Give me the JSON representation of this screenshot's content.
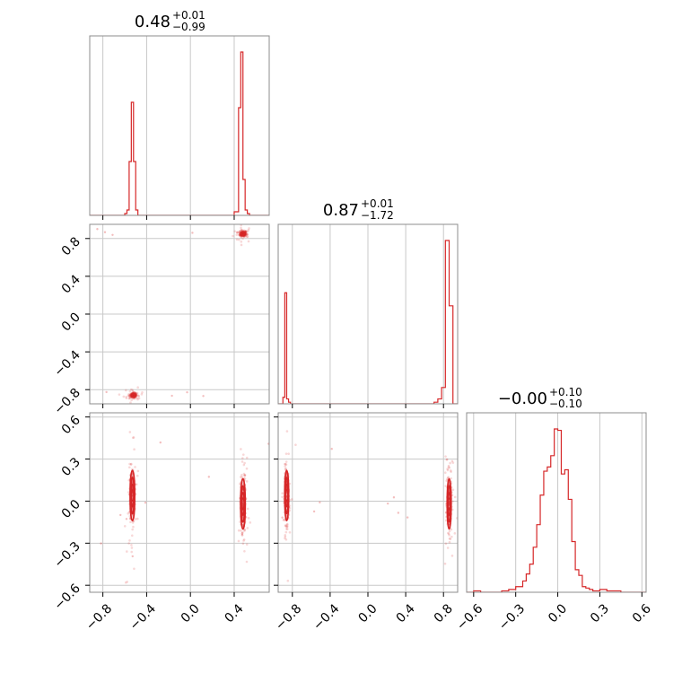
{
  "chart_data": {
    "type": "scatter",
    "subtype": "corner-plot",
    "color": "#d62728",
    "grid": true,
    "parameters": [
      {
        "title": {
          "value": "0.48",
          "plus": "+0.01",
          "minus": "−0.99"
        },
        "range": [
          -0.92,
          0.72
        ],
        "ticks": [
          -0.8,
          -0.4,
          0.0,
          0.4
        ],
        "tick_labels": [
          "−0.8",
          "−0.4",
          "0.0",
          "0.4"
        ]
      },
      {
        "title": {
          "value": "0.87",
          "plus": "+0.01",
          "minus": "−1.72"
        },
        "range": [
          -0.95,
          0.95
        ],
        "ticks": [
          -0.8,
          -0.4,
          0.0,
          0.4,
          0.8
        ],
        "tick_labels": [
          "−0.8",
          "−0.4",
          "0.0",
          "0.4",
          "0.8"
        ]
      },
      {
        "title": {
          "value": "−0.00",
          "plus": "+0.10",
          "minus": "−0.10"
        },
        "range": [
          -0.65,
          0.63
        ],
        "ticks": [
          -0.6,
          -0.3,
          0.0,
          0.3,
          0.6
        ],
        "tick_labels": [
          "−0.6",
          "−0.3",
          "0.0",
          "0.3",
          "0.6"
        ]
      }
    ],
    "histograms": [
      {
        "param": 0,
        "bin_edges": [
          -0.92,
          -0.6,
          -0.58,
          -0.56,
          -0.54,
          -0.52,
          -0.5,
          -0.48,
          0.4,
          0.44,
          0.46,
          0.48,
          0.5,
          0.52,
          0.54,
          0.72
        ],
        "counts": [
          0,
          1,
          3,
          30,
          63,
          30,
          3,
          0,
          2,
          60,
          91,
          20,
          3,
          1,
          0
        ]
      },
      {
        "param": 1,
        "bin_edges": [
          -0.95,
          -0.9,
          -0.88,
          -0.86,
          -0.84,
          -0.82,
          -0.78,
          0.7,
          0.74,
          0.78,
          0.82,
          0.86,
          0.9,
          0.95
        ],
        "counts": [
          0,
          4,
          68,
          3,
          1,
          0,
          0,
          1,
          3,
          10,
          100,
          60,
          0
        ]
      },
      {
        "param": 2,
        "bin_edges": [
          -0.65,
          -0.6,
          -0.55,
          -0.5,
          -0.45,
          -0.4,
          -0.35,
          -0.325,
          -0.3,
          -0.275,
          -0.25,
          -0.225,
          -0.2,
          -0.175,
          -0.15,
          -0.125,
          -0.1,
          -0.075,
          -0.05,
          -0.025,
          0.0,
          0.025,
          0.05,
          0.075,
          0.1,
          0.125,
          0.15,
          0.175,
          0.2,
          0.225,
          0.25,
          0.3,
          0.35,
          0.4,
          0.45,
          0.5,
          0.55,
          0.6,
          0.63
        ],
        "counts": [
          0,
          1,
          0,
          0,
          0,
          1,
          2,
          2,
          4,
          4,
          8,
          13,
          20,
          32,
          48,
          69,
          86,
          89,
          97,
          116,
          115,
          84,
          87,
          66,
          36,
          16,
          12,
          4,
          3,
          2,
          1,
          2,
          1,
          1,
          0,
          0,
          0,
          0
        ]
      }
    ],
    "scatter_panels": [
      {
        "x_param": 0,
        "y_param": 1,
        "modes": [
          {
            "x": 0.48,
            "y": 0.85,
            "sx": 0.015,
            "sy": 0.015
          },
          {
            "x": -0.52,
            "y": -0.86,
            "sx": 0.015,
            "sy": 0.012
          }
        ],
        "contour_levels": [
          0.4,
          0.8
        ]
      },
      {
        "x_param": 0,
        "y_param": 2,
        "modes": [
          {
            "x": -0.53,
            "y": 0.04,
            "sx": 0.012,
            "sy": 0.1
          },
          {
            "x": 0.48,
            "y": -0.02,
            "sx": 0.012,
            "sy": 0.1
          }
        ],
        "contour_levels": [
          0.4,
          0.8,
          1.3,
          1.8
        ]
      },
      {
        "x_param": 1,
        "y_param": 2,
        "modes": [
          {
            "x": -0.86,
            "y": 0.04,
            "sx": 0.012,
            "sy": 0.1
          },
          {
            "x": 0.86,
            "y": -0.02,
            "sx": 0.012,
            "sy": 0.1
          }
        ],
        "contour_levels": [
          0.4,
          0.8,
          1.3,
          1.8
        ]
      }
    ]
  }
}
